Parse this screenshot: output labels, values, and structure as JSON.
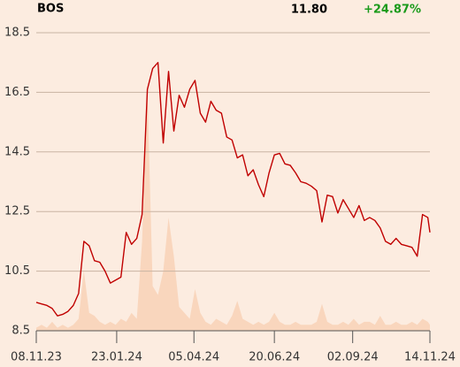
{
  "chart_data": {
    "type": "line",
    "title": "BOS",
    "price": "11.80",
    "change": "+24.87%",
    "change_color": "#1a9a1a",
    "x": [
      "08.11.23",
      "13.11.23",
      "18.11.23",
      "23.11.23",
      "28.11.23",
      "03.12.23",
      "08.12.23",
      "13.12.23",
      "18.12.23",
      "23.12.23",
      "28.12.23",
      "02.01.24",
      "07.01.24",
      "12.01.24",
      "17.01.24",
      "22.01.24",
      "27.01.24",
      "01.02.24",
      "06.02.24",
      "11.02.24",
      "16.02.24",
      "21.02.24",
      "26.02.24",
      "02.03.24",
      "07.03.24",
      "12.03.24",
      "17.03.24",
      "22.03.24",
      "27.03.24",
      "01.04.24",
      "06.04.24",
      "11.04.24",
      "16.04.24",
      "21.04.24",
      "26.04.24",
      "01.05.24",
      "06.05.24",
      "11.05.24",
      "16.05.24",
      "21.05.24",
      "26.05.24",
      "31.05.24",
      "05.06.24",
      "10.06.24",
      "15.06.24",
      "20.06.24",
      "25.06.24",
      "30.06.24",
      "05.07.24",
      "10.07.24",
      "15.07.24",
      "20.07.24",
      "25.07.24",
      "30.07.24",
      "04.08.24",
      "09.08.24",
      "14.08.24",
      "19.08.24",
      "24.08.24",
      "29.08.24",
      "03.09.24",
      "08.09.24",
      "13.09.24",
      "18.09.24",
      "23.09.24",
      "28.09.24",
      "03.10.24",
      "08.10.24",
      "13.10.24",
      "18.10.24",
      "23.10.24",
      "28.10.24",
      "02.11.24",
      "07.11.24",
      "12.11.24",
      "14.11.24"
    ],
    "series": [
      {
        "color": "#c00000",
        "values": [
          9.45,
          9.4,
          9.35,
          9.25,
          9.0,
          9.05,
          9.15,
          9.35,
          9.75,
          11.5,
          11.35,
          10.85,
          10.8,
          10.5,
          10.1,
          10.2,
          10.3,
          11.8,
          11.4,
          11.6,
          12.4,
          16.6,
          17.3,
          17.5,
          14.8,
          17.2,
          15.2,
          16.4,
          16.0,
          16.6,
          16.9,
          15.8,
          15.5,
          16.2,
          15.9,
          15.8,
          15.0,
          14.9,
          14.3,
          14.4,
          13.7,
          13.9,
          13.4,
          13.0,
          13.8,
          14.4,
          14.45,
          14.1,
          14.05,
          13.8,
          13.5,
          13.45,
          13.35,
          13.2,
          12.15,
          13.05,
          13.0,
          12.45,
          12.9,
          12.6,
          12.3,
          12.7,
          12.2,
          12.3,
          12.2,
          11.95,
          11.5,
          11.4,
          11.6,
          11.4,
          11.35,
          11.3,
          11.0,
          12.4,
          12.3,
          11.8
        ]
      },
      {
        "type": "area",
        "axis": "y2",
        "color": "#f9d6bd",
        "values": [
          1,
          2,
          1,
          3,
          1,
          2,
          1,
          2,
          4,
          20,
          6,
          5,
          3,
          2,
          3,
          2,
          4,
          3,
          6,
          4,
          30,
          81,
          15,
          12,
          20,
          38,
          25,
          8,
          6,
          4,
          14,
          6,
          3,
          2,
          4,
          3,
          2,
          5,
          10,
          4,
          3,
          2,
          3,
          2,
          3,
          6,
          3,
          2,
          2,
          3,
          2,
          2,
          2,
          3,
          9,
          3,
          2,
          2,
          3,
          2,
          4,
          2,
          3,
          3,
          2,
          5,
          2,
          2,
          3,
          2,
          2,
          3,
          2,
          4,
          3,
          2
        ]
      }
    ],
    "xlim": [
      "08.11.23",
      "14.11.24"
    ],
    "xticks": [
      "08.11.23",
      "23.01.24",
      "05.04.24",
      "20.06.24",
      "02.09.24",
      "14.11.24"
    ],
    "ylim": [
      8.5,
      18.5
    ],
    "yticks": [
      8.5,
      10.5,
      12.5,
      14.5,
      16.5,
      18.5
    ],
    "y2lim": [
      0,
      100
    ],
    "grid": true
  }
}
